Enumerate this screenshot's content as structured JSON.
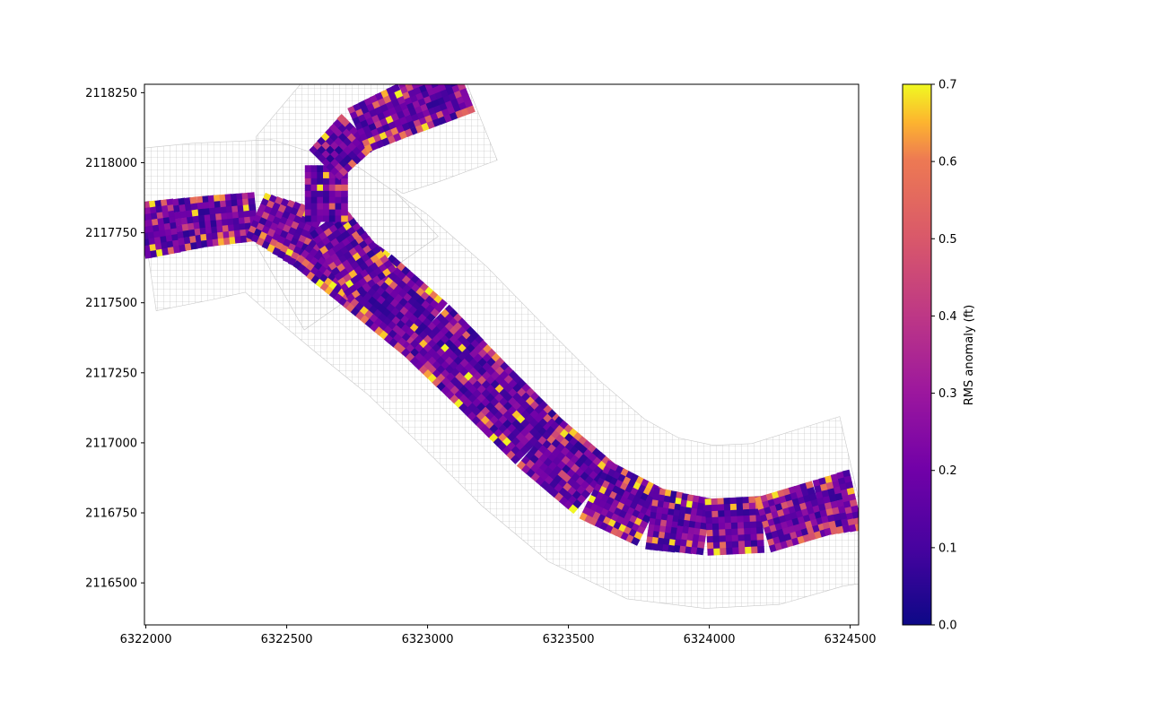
{
  "chart_data": {
    "type": "heatmap",
    "title": "",
    "xlabel": "",
    "ylabel": "",
    "xlim": [
      6321995,
      6324530
    ],
    "ylim": [
      2116350,
      2118280
    ],
    "x_ticks": [
      6322000,
      6322500,
      6323000,
      6323500,
      6324000,
      6324500
    ],
    "x_tick_labels": [
      "6322000",
      "6322500",
      "6323000",
      "6323500",
      "6324000",
      "6324500"
    ],
    "y_ticks": [
      2116500,
      2116750,
      2117000,
      2117250,
      2117500,
      2117750,
      2118000,
      2118250
    ],
    "y_tick_labels": [
      "2116500",
      "2116750",
      "2117000",
      "2117250",
      "2117500",
      "2117750",
      "2118000",
      "2118250"
    ],
    "colorbar": {
      "label": "RMS anomaly (ft)",
      "colormap": "plasma",
      "range": [
        0.0,
        0.7
      ],
      "ticks": [
        0.0,
        0.1,
        0.2,
        0.3,
        0.4,
        0.5,
        0.6,
        0.7
      ],
      "tick_labels": [
        "0.0",
        "0.1",
        "0.2",
        "0.3",
        "0.4",
        "0.5",
        "0.6",
        "0.7"
      ]
    },
    "grid": false,
    "mesh_color": "#b8b8b8",
    "channel_mainstem_centerline": [
      [
        6321995,
        2117760
      ],
      [
        6322200,
        2117790
      ],
      [
        6322400,
        2117810
      ],
      [
        6322600,
        2117720
      ],
      [
        6322800,
        2117570
      ],
      [
        6323000,
        2117400
      ],
      [
        6323200,
        2117200
      ],
      [
        6323400,
        2117000
      ],
      [
        6323600,
        2116830
      ],
      [
        6323800,
        2116730
      ],
      [
        6324000,
        2116700
      ],
      [
        6324200,
        2116710
      ],
      [
        6324400,
        2116770
      ],
      [
        6324530,
        2116800
      ]
    ],
    "channel_mainstem_width_ft": [
      200,
      180,
      170,
      230,
      250,
      240,
      230,
      230,
      230,
      220,
      200,
      200,
      200,
      220
    ],
    "channel_branch_centerline": [
      [
        6322800,
        2117570
      ],
      [
        6322640,
        2117800
      ],
      [
        6322640,
        2118000
      ],
      [
        6322760,
        2118120
      ],
      [
        6322940,
        2118200
      ],
      [
        6323140,
        2118280
      ]
    ],
    "channel_branch_width_ft": [
      200,
      150,
      150,
      170,
      190,
      200
    ],
    "mesh_buffer_ft": 190
  }
}
